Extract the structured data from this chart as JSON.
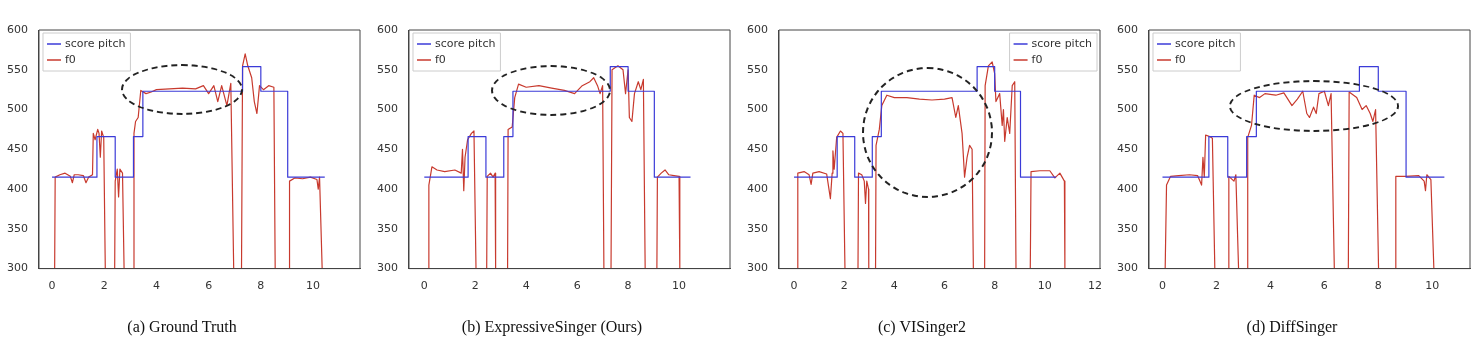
{
  "chart_data": [
    {
      "type": "line",
      "title": "(a) Ground Truth",
      "xlim": [
        -0.5,
        11.8
      ],
      "xticks": [
        0,
        2,
        4,
        6,
        8,
        10
      ],
      "ylim": [
        300,
        600
      ],
      "yticks": [
        300,
        350,
        400,
        450,
        500,
        550,
        600
      ],
      "grid": false,
      "legend": "top left",
      "marker": "none",
      "series": [
        {
          "name": "score pitch",
          "type": "step",
          "color": "#3b3bd8",
          "x": [
            0,
            1.72,
            2.42,
            3.12,
            3.48,
            7.3,
            8.0,
            9.03,
            10.45
          ],
          "values": [
            415,
            466,
            415,
            466,
            523,
            554,
            523,
            415,
            415
          ]
        },
        {
          "name": "f0",
          "color": "#c83a2e",
          "x": [
            0.1,
            0.12,
            0.3,
            0.5,
            0.7,
            0.78,
            0.85,
            1.0,
            1.2,
            1.3,
            1.4,
            1.55,
            1.58,
            1.65,
            1.75,
            1.8,
            1.85,
            1.9,
            1.98,
            2.04,
            2.4,
            2.42,
            2.5,
            2.55,
            2.6,
            2.7,
            2.76,
            3.12,
            3.14,
            3.2,
            3.3,
            3.4,
            3.6,
            3.8,
            4.0,
            4.5,
            5.0,
            5.5,
            5.8,
            6.0,
            6.2,
            6.35,
            6.5,
            6.7,
            6.85,
            6.96,
            7.26,
            7.3,
            7.4,
            7.5,
            7.65,
            7.75,
            7.85,
            7.95,
            8.1,
            8.3,
            8.5,
            8.55,
            9.08,
            9.1,
            9.3,
            9.6,
            9.9,
            10.15,
            10.2,
            10.25,
            10.35
          ],
          "values": [
            300,
            415,
            418,
            420,
            416,
            408,
            418,
            418,
            417,
            408,
            415,
            418,
            470,
            462,
            475,
            470,
            440,
            473,
            465,
            300,
            300,
            410,
            425,
            390,
            425,
            420,
            300,
            300,
            470,
            485,
            490,
            524,
            520,
            522,
            525,
            526,
            527,
            526,
            530,
            520,
            530,
            510,
            530,
            505,
            533,
            300,
            300,
            555,
            570,
            555,
            540,
            510,
            495,
            530,
            525,
            530,
            528,
            300,
            300,
            410,
            414,
            413,
            415,
            412,
            400,
            415,
            300
          ]
        }
      ]
    },
    {
      "type": "line",
      "title": "(b) ExpressiveSinger (Ours)",
      "xlim": [
        -0.6,
        12
      ],
      "xticks": [
        0,
        2,
        4,
        6,
        8,
        10
      ],
      "ylim": [
        300,
        600
      ],
      "yticks": [
        300,
        350,
        400,
        450,
        500,
        550,
        600
      ],
      "grid": false,
      "legend": "top left",
      "marker": "none",
      "series": [
        {
          "name": "score pitch",
          "type": "step",
          "color": "#3b3bd8",
          "x": [
            0,
            1.72,
            2.42,
            3.12,
            3.48,
            7.3,
            8.0,
            9.03,
            10.45
          ],
          "values": [
            415,
            466,
            415,
            466,
            523,
            554,
            523,
            415,
            415
          ]
        },
        {
          "name": "f0",
          "color": "#c83a2e",
          "x": [
            0.16,
            0.18,
            0.3,
            0.5,
            0.8,
            1.2,
            1.45,
            1.5,
            1.55,
            1.6,
            1.7,
            1.85,
            1.95,
            2.03,
            2.45,
            2.47,
            2.6,
            2.7,
            2.78,
            2.8,
            3.27,
            3.29,
            3.45,
            3.55,
            3.7,
            4.0,
            4.5,
            5.0,
            5.5,
            5.9,
            6.2,
            6.5,
            6.65,
            6.8,
            6.9,
            7.0,
            7.05,
            7.33,
            7.37,
            7.6,
            7.8,
            7.9,
            8.0,
            8.05,
            8.15,
            8.25,
            8.4,
            8.5,
            8.6,
            8.67,
            9.13,
            9.15,
            9.3,
            9.45,
            9.6,
            9.8,
            10.0,
            10.03
          ],
          "values": [
            300,
            405,
            428,
            424,
            422,
            424,
            420,
            450,
            398,
            440,
            462,
            470,
            473,
            300,
            300,
            416,
            420,
            415,
            420,
            300,
            300,
            475,
            478,
            515,
            532,
            528,
            530,
            527,
            524,
            520,
            530,
            535,
            540,
            530,
            520,
            530,
            300,
            300,
            550,
            555,
            550,
            520,
            550,
            490,
            485,
            520,
            535,
            525,
            538,
            300,
            300,
            415,
            420,
            424,
            418,
            417,
            416,
            300
          ]
        }
      ]
    },
    {
      "type": "line",
      "title": "(c) VISinger2",
      "xlim": [
        -0.6,
        12.2
      ],
      "xticks": [
        0,
        2,
        4,
        6,
        8,
        10,
        12
      ],
      "ylim": [
        300,
        600
      ],
      "yticks": [
        300,
        350,
        400,
        450,
        500,
        550,
        600
      ],
      "grid": false,
      "legend": "top right",
      "marker": "none",
      "series": [
        {
          "name": "score pitch",
          "type": "step",
          "color": "#3b3bd8",
          "x": [
            0,
            1.72,
            2.42,
            3.12,
            3.48,
            7.3,
            8.0,
            9.03,
            10.45
          ],
          "values": [
            415,
            466,
            415,
            466,
            523,
            554,
            523,
            415,
            415
          ]
        },
        {
          "name": "f0",
          "color": "#c83a2e",
          "x": [
            0.14,
            0.15,
            0.4,
            0.6,
            0.68,
            0.75,
            1.0,
            1.3,
            1.45,
            1.52,
            1.55,
            1.6,
            1.7,
            1.85,
            1.95,
            2.03,
            2.55,
            2.57,
            2.7,
            2.8,
            2.85,
            2.9,
            2.97,
            2.98,
            3.25,
            3.27,
            3.4,
            3.5,
            3.7,
            4.0,
            4.5,
            5.0,
            5.5,
            6.0,
            6.3,
            6.45,
            6.55,
            6.7,
            6.8,
            6.9,
            7.0,
            7.1,
            7.15,
            7.6,
            7.62,
            7.75,
            7.9,
            8.0,
            8.05,
            8.2,
            8.3,
            8.35,
            8.4,
            8.5,
            8.6,
            8.7,
            8.8,
            8.85,
            9.42,
            9.45,
            9.8,
            10.2,
            10.4,
            10.6,
            10.78,
            10.8
          ],
          "values": [
            300,
            420,
            422,
            418,
            406,
            420,
            422,
            419,
            388,
            420,
            448,
            425,
            465,
            473,
            470,
            300,
            300,
            420,
            418,
            410,
            382,
            410,
            400,
            300,
            300,
            455,
            475,
            505,
            518,
            515,
            515,
            513,
            512,
            513,
            515,
            490,
            505,
            470,
            415,
            440,
            455,
            450,
            300,
            300,
            530,
            555,
            560,
            545,
            510,
            520,
            480,
            500,
            460,
            490,
            470,
            530,
            535,
            300,
            300,
            422,
            423,
            423,
            414,
            420,
            410,
            300
          ]
        }
      ]
    },
    {
      "type": "line",
      "title": "(d) DiffSinger",
      "xlim": [
        -0.5,
        11.4
      ],
      "xticks": [
        0,
        2,
        4,
        6,
        8,
        10
      ],
      "ylim": [
        300,
        600
      ],
      "yticks": [
        300,
        350,
        400,
        450,
        500,
        550,
        600
      ],
      "grid": false,
      "legend": "top left",
      "marker": "none",
      "series": [
        {
          "name": "score pitch",
          "type": "step",
          "color": "#3b3bd8",
          "x": [
            0,
            1.72,
            2.42,
            3.12,
            3.48,
            7.3,
            8.0,
            9.03,
            10.45
          ],
          "values": [
            415,
            466,
            415,
            466,
            523,
            554,
            523,
            415,
            415
          ]
        },
        {
          "name": "f0",
          "color": "#c83a2e",
          "x": [
            0.1,
            0.15,
            0.3,
            0.6,
            1.0,
            1.3,
            1.45,
            1.5,
            1.55,
            1.6,
            1.75,
            1.85,
            1.94,
            2.44,
            2.46,
            2.65,
            2.72,
            2.82,
            3.14,
            3.16,
            3.3,
            3.4,
            3.6,
            3.8,
            4.2,
            4.5,
            4.8,
            5.0,
            5.2,
            5.35,
            5.45,
            5.6,
            5.7,
            5.8,
            6.0,
            6.15,
            6.25,
            6.37,
            6.89,
            6.92,
            7.2,
            7.4,
            7.55,
            7.7,
            7.8,
            7.9,
            8.01,
            8.63,
            8.65,
            9.0,
            9.5,
            9.7,
            9.75,
            9.8,
            9.95,
            10.06
          ],
          "values": [
            300,
            405,
            416,
            417,
            418,
            417,
            405,
            440,
            415,
            468,
            466,
            464,
            300,
            300,
            416,
            410,
            418,
            300,
            300,
            465,
            480,
            518,
            515,
            520,
            518,
            521,
            505,
            513,
            523,
            495,
            490,
            503,
            495,
            520,
            523,
            505,
            520,
            300,
            300,
            522,
            515,
            500,
            505,
            495,
            485,
            500,
            300,
            300,
            416,
            416,
            417,
            410,
            398,
            418,
            412,
            300
          ]
        }
      ]
    }
  ]
}
